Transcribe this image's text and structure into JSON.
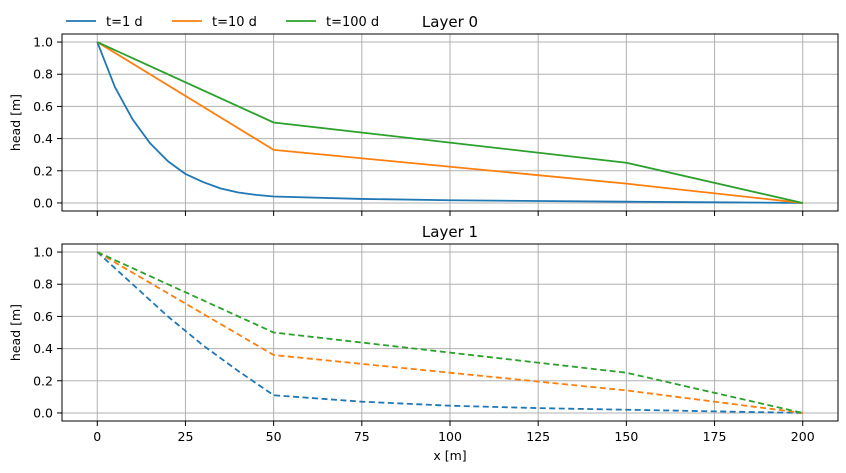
{
  "chart_data": [
    {
      "type": "line",
      "title": "Layer 0",
      "xlabel": "",
      "ylabel": "head [m]",
      "xlim": [
        -10,
        210
      ],
      "ylim": [
        -0.05,
        1.05
      ],
      "xticks": [
        0,
        25,
        50,
        75,
        100,
        125,
        150,
        175,
        200
      ],
      "xtick_labels_visible": false,
      "yticks": [
        0.0,
        0.2,
        0.4,
        0.6,
        0.8,
        1.0
      ],
      "ytick_labels": [
        "0.0",
        "0.2",
        "0.4",
        "0.6",
        "0.8",
        "1.0"
      ],
      "grid": true,
      "line_style": "solid",
      "series": [
        {
          "name": "t=1 d",
          "color": "#1f77b4",
          "x": [
            0,
            5,
            10,
            15,
            20,
            25,
            30,
            35,
            40,
            45,
            50,
            75,
            100,
            125,
            150,
            175,
            200
          ],
          "y": [
            1.0,
            0.72,
            0.52,
            0.37,
            0.26,
            0.18,
            0.13,
            0.09,
            0.065,
            0.05,
            0.04,
            0.025,
            0.017,
            0.012,
            0.008,
            0.004,
            0.0
          ]
        },
        {
          "name": "t=10 d",
          "color": "#ff7f0e",
          "x": [
            0,
            50,
            150,
            200
          ],
          "y": [
            1.0,
            0.33,
            0.12,
            0.0
          ]
        },
        {
          "name": "t=100 d",
          "color": "#2ca02c",
          "x": [
            0,
            50,
            150,
            200
          ],
          "y": [
            1.0,
            0.5,
            0.25,
            0.0
          ]
        }
      ]
    },
    {
      "type": "line",
      "title": "Layer 1",
      "xlabel": "x [m]",
      "ylabel": "head [m]",
      "xlim": [
        -10,
        210
      ],
      "ylim": [
        -0.05,
        1.05
      ],
      "xticks": [
        0,
        25,
        50,
        75,
        100,
        125,
        150,
        175,
        200
      ],
      "xtick_labels": [
        "0",
        "25",
        "50",
        "75",
        "100",
        "125",
        "150",
        "175",
        "200"
      ],
      "yticks": [
        0.0,
        0.2,
        0.4,
        0.6,
        0.8,
        1.0
      ],
      "ytick_labels": [
        "0.0",
        "0.2",
        "0.4",
        "0.6",
        "0.8",
        "1.0"
      ],
      "grid": true,
      "line_style": "dashed",
      "series": [
        {
          "color": "#1f77b4",
          "x": [
            0,
            10,
            20,
            30,
            40,
            50,
            75,
            100,
            125,
            150,
            175,
            200
          ],
          "y": [
            1.0,
            0.8,
            0.6,
            0.42,
            0.26,
            0.11,
            0.07,
            0.045,
            0.03,
            0.02,
            0.01,
            0.0
          ]
        },
        {
          "color": "#ff7f0e",
          "x": [
            0,
            50,
            150,
            200
          ],
          "y": [
            1.0,
            0.36,
            0.14,
            0.0
          ]
        },
        {
          "color": "#2ca02c",
          "x": [
            0,
            50,
            150,
            200
          ],
          "y": [
            1.0,
            0.5,
            0.25,
            0.0
          ]
        }
      ]
    }
  ],
  "legend": {
    "placement": "top-left",
    "entries": [
      {
        "label": "t=1 d",
        "color": "#1f77b4"
      },
      {
        "label": "t=10 d",
        "color": "#ff7f0e"
      },
      {
        "label": "t=100 d",
        "color": "#2ca02c"
      }
    ]
  }
}
